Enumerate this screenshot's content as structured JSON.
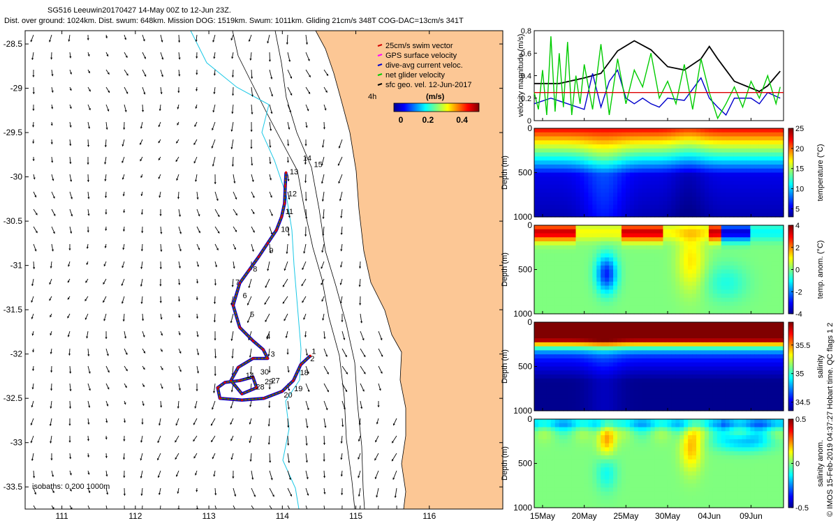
{
  "header": {
    "line1": "SG516 Leeuwin20170427 14-May 00Z to 12-Jun 23Z.",
    "line2": "Dist. over ground: 1024km. Dist. swum: 648km. Mission DOG: 1519km. Swum: 1011km. Gliding 21cm/s 348T COG-DAC=13cm/s 341T"
  },
  "credit": "© IMOS 15-Feb-2019 04:37:27 Hobart time. QC flags 1  2",
  "chart_data": [
    {
      "type": "scatter",
      "xlim": [
        110.5,
        117.0
      ],
      "ylim": [
        -33.75,
        -28.35
      ],
      "x_ticks": [
        111,
        112,
        113,
        114,
        115,
        116
      ],
      "y_ticks": [
        -28.5,
        -29,
        -29.5,
        -30,
        -30.5,
        -31,
        -31.5,
        -32,
        -32.5,
        -33,
        -33.5
      ],
      "legend": [
        "25cm/s swim vector",
        "GPS surface velocity",
        "dive-avg current veloc.",
        "net glider velocity",
        "sfc geo. vel. 12-Jun-2017"
      ],
      "legend_colors": [
        "#d40000",
        "#ff00ff",
        "#0000cc",
        "#00cc00",
        "#000000"
      ],
      "legend_time": "4h",
      "colorbar_label": "(m/s)",
      "colorbar_ticks": [
        0,
        0.2,
        0.4
      ],
      "isobaths_label": "isobaths: 0   200  1000m",
      "track_points": [
        {
          "x": 114.05,
          "y": -29.95
        },
        {
          "x": 114.04,
          "y": -30.1
        },
        {
          "x": 114.03,
          "y": -30.3
        },
        {
          "x": 113.99,
          "y": -30.45
        },
        {
          "x": 113.92,
          "y": -30.6
        },
        {
          "x": 113.8,
          "y": -30.75
        },
        {
          "x": 113.68,
          "y": -30.9
        },
        {
          "x": 113.55,
          "y": -31.05
        },
        {
          "x": 113.42,
          "y": -31.2
        },
        {
          "x": 113.33,
          "y": -31.45
        },
        {
          "x": 113.42,
          "y": -31.7
        },
        {
          "x": 113.6,
          "y": -31.85
        },
        {
          "x": 113.74,
          "y": -31.95
        },
        {
          "x": 113.8,
          "y": -32.05
        },
        {
          "x": 113.6,
          "y": -32.05
        },
        {
          "x": 113.4,
          "y": -32.15
        },
        {
          "x": 113.3,
          "y": -32.3
        },
        {
          "x": 113.45,
          "y": -32.45
        },
        {
          "x": 113.65,
          "y": -32.38
        },
        {
          "x": 113.6,
          "y": -32.26
        },
        {
          "x": 113.42,
          "y": -32.3
        },
        {
          "x": 113.22,
          "y": -32.32
        },
        {
          "x": 113.12,
          "y": -32.38
        },
        {
          "x": 113.15,
          "y": -32.5
        },
        {
          "x": 113.45,
          "y": -32.52
        },
        {
          "x": 113.75,
          "y": -32.5
        },
        {
          "x": 114.0,
          "y": -32.42
        },
        {
          "x": 114.15,
          "y": -32.3
        },
        {
          "x": 114.25,
          "y": -32.12
        },
        {
          "x": 114.38,
          "y": -32.02
        }
      ],
      "track_labels": [
        {
          "text": "13",
          "x": 114.1,
          "y": -29.97
        },
        {
          "text": "12",
          "x": 114.08,
          "y": -30.22
        },
        {
          "text": "11",
          "x": 114.04,
          "y": -30.42
        },
        {
          "text": "10",
          "x": 113.98,
          "y": -30.62
        },
        {
          "text": "9",
          "x": 113.82,
          "y": -30.86
        },
        {
          "text": "8",
          "x": 113.6,
          "y": -31.07
        },
        {
          "text": "7",
          "x": 113.36,
          "y": -31.22
        },
        {
          "text": "6",
          "x": 113.46,
          "y": -31.37
        },
        {
          "text": "5",
          "x": 113.56,
          "y": -31.58
        },
        {
          "text": "4",
          "x": 113.78,
          "y": -31.83
        },
        {
          "text": "3",
          "x": 113.84,
          "y": -32.03
        },
        {
          "text": "30",
          "x": 113.7,
          "y": -32.23
        },
        {
          "text": "29",
          "x": 113.76,
          "y": -32.34
        },
        {
          "text": "27",
          "x": 113.85,
          "y": -32.33
        },
        {
          "text": "28",
          "x": 113.64,
          "y": -32.4
        },
        {
          "text": "14",
          "x": 113.5,
          "y": -32.27
        },
        {
          "text": "18",
          "x": 114.24,
          "y": -32.24
        },
        {
          "text": "19",
          "x": 114.16,
          "y": -32.42
        },
        {
          "text": "20",
          "x": 114.02,
          "y": -32.49
        },
        {
          "text": "14",
          "x": 114.28,
          "y": -29.82
        },
        {
          "text": "15",
          "x": 114.43,
          "y": -29.89
        },
        {
          "text": "1",
          "x": 114.4,
          "y": -32.0
        },
        {
          "text": "2",
          "x": 114.38,
          "y": -32.08
        }
      ]
    },
    {
      "type": "line",
      "ylabel": "velocity magnitude (m/s)",
      "ylim": [
        0,
        0.8
      ],
      "y_ticks": [
        0,
        0.2,
        0.4,
        0.6,
        0.8
      ],
      "x_ticks": [
        "15May",
        "20May",
        "25May",
        "30May",
        "04Jun",
        "09Jun"
      ],
      "x_tick_days": [
        1,
        6,
        11,
        16,
        21,
        26
      ],
      "xlim_days": [
        0,
        29.9
      ],
      "series": [
        {
          "color": "#000000",
          "x": [
            0,
            3,
            6,
            8,
            10,
            12,
            14,
            16,
            18,
            20,
            21,
            22,
            24,
            26,
            27,
            28,
            29.5
          ],
          "values": [
            0.33,
            0.33,
            0.38,
            0.42,
            0.62,
            0.71,
            0.63,
            0.48,
            0.45,
            0.55,
            0.66,
            0.55,
            0.35,
            0.29,
            0.26,
            0.31,
            0.44
          ]
        },
        {
          "color": "#0000cc",
          "x": [
            0,
            2,
            4,
            6,
            7,
            8,
            9,
            10,
            11,
            12,
            13,
            14,
            15,
            16,
            18,
            20,
            21,
            22,
            23,
            24,
            26,
            27,
            28,
            29.5
          ],
          "values": [
            0.15,
            0.2,
            0.15,
            0.1,
            0.42,
            0.12,
            0.35,
            0.45,
            0.2,
            0.15,
            0.2,
            0.15,
            0.12,
            0.2,
            0.18,
            0.38,
            0.2,
            0.12,
            0.05,
            0.2,
            0.2,
            0.15,
            0.25,
            0.2
          ]
        },
        {
          "color": "#00cc00",
          "x": [
            0,
            0.5,
            1,
            1.5,
            2,
            2.5,
            3,
            3.5,
            4,
            4.5,
            5,
            5.5,
            6,
            7,
            8,
            9,
            10,
            11,
            12,
            13,
            14,
            15,
            16,
            17,
            18,
            19,
            20,
            21,
            22,
            23,
            24,
            25,
            26,
            27,
            28,
            29,
            29.5
          ],
          "values": [
            0.25,
            0.1,
            0.45,
            0.05,
            0.75,
            0.08,
            0.6,
            0.12,
            0.7,
            0.05,
            0.4,
            0.15,
            0.5,
            0.1,
            0.68,
            0.05,
            0.55,
            0.15,
            0.45,
            0.3,
            0.6,
            0.2,
            0.35,
            0.15,
            0.5,
            0.1,
            0.55,
            0.25,
            0.02,
            0.15,
            0.3,
            0.12,
            0.35,
            0.2,
            0.4,
            0.15,
            0.3
          ]
        },
        {
          "color": "#dd0000",
          "x": [
            0,
            29.9
          ],
          "values": [
            0.25,
            0.25
          ]
        }
      ]
    },
    {
      "type": "heatmap",
      "ylabel": "Depth (m)",
      "ylim": [
        1000,
        0
      ],
      "y_ticks": [
        0,
        500,
        1000
      ],
      "colorbar_label": "temperature (°C)",
      "colorbar_ticks": [
        5,
        10,
        15,
        20,
        25
      ],
      "clim": [
        3,
        25
      ]
    },
    {
      "type": "heatmap",
      "ylabel": "Depth (m)",
      "ylim": [
        1000,
        0
      ],
      "y_ticks": [
        0,
        500,
        1000
      ],
      "colorbar_label": "temp. anom. (°C)",
      "colorbar_ticks": [
        -4,
        -2,
        0,
        2,
        4
      ],
      "clim": [
        -4,
        4
      ]
    },
    {
      "type": "heatmap",
      "ylabel": "Depth (m)",
      "ylim": [
        1000,
        0
      ],
      "y_ticks": [
        0,
        500,
        1000
      ],
      "colorbar_label": "salinity",
      "colorbar_ticks": [
        34.5,
        35,
        35.5
      ],
      "clim": [
        34.35,
        35.9
      ]
    },
    {
      "type": "heatmap",
      "ylabel": "Depth (m)",
      "ylim": [
        1000,
        0
      ],
      "y_ticks": [
        0,
        500,
        1000
      ],
      "colorbar_label": "salinity anom.",
      "colorbar_ticks": [
        -0.5,
        0,
        0.5
      ],
      "clim": [
        -0.5,
        0.5
      ],
      "x_ticks": [
        "15May",
        "20May",
        "25May",
        "30May",
        "04Jun",
        "09Jun"
      ]
    }
  ]
}
